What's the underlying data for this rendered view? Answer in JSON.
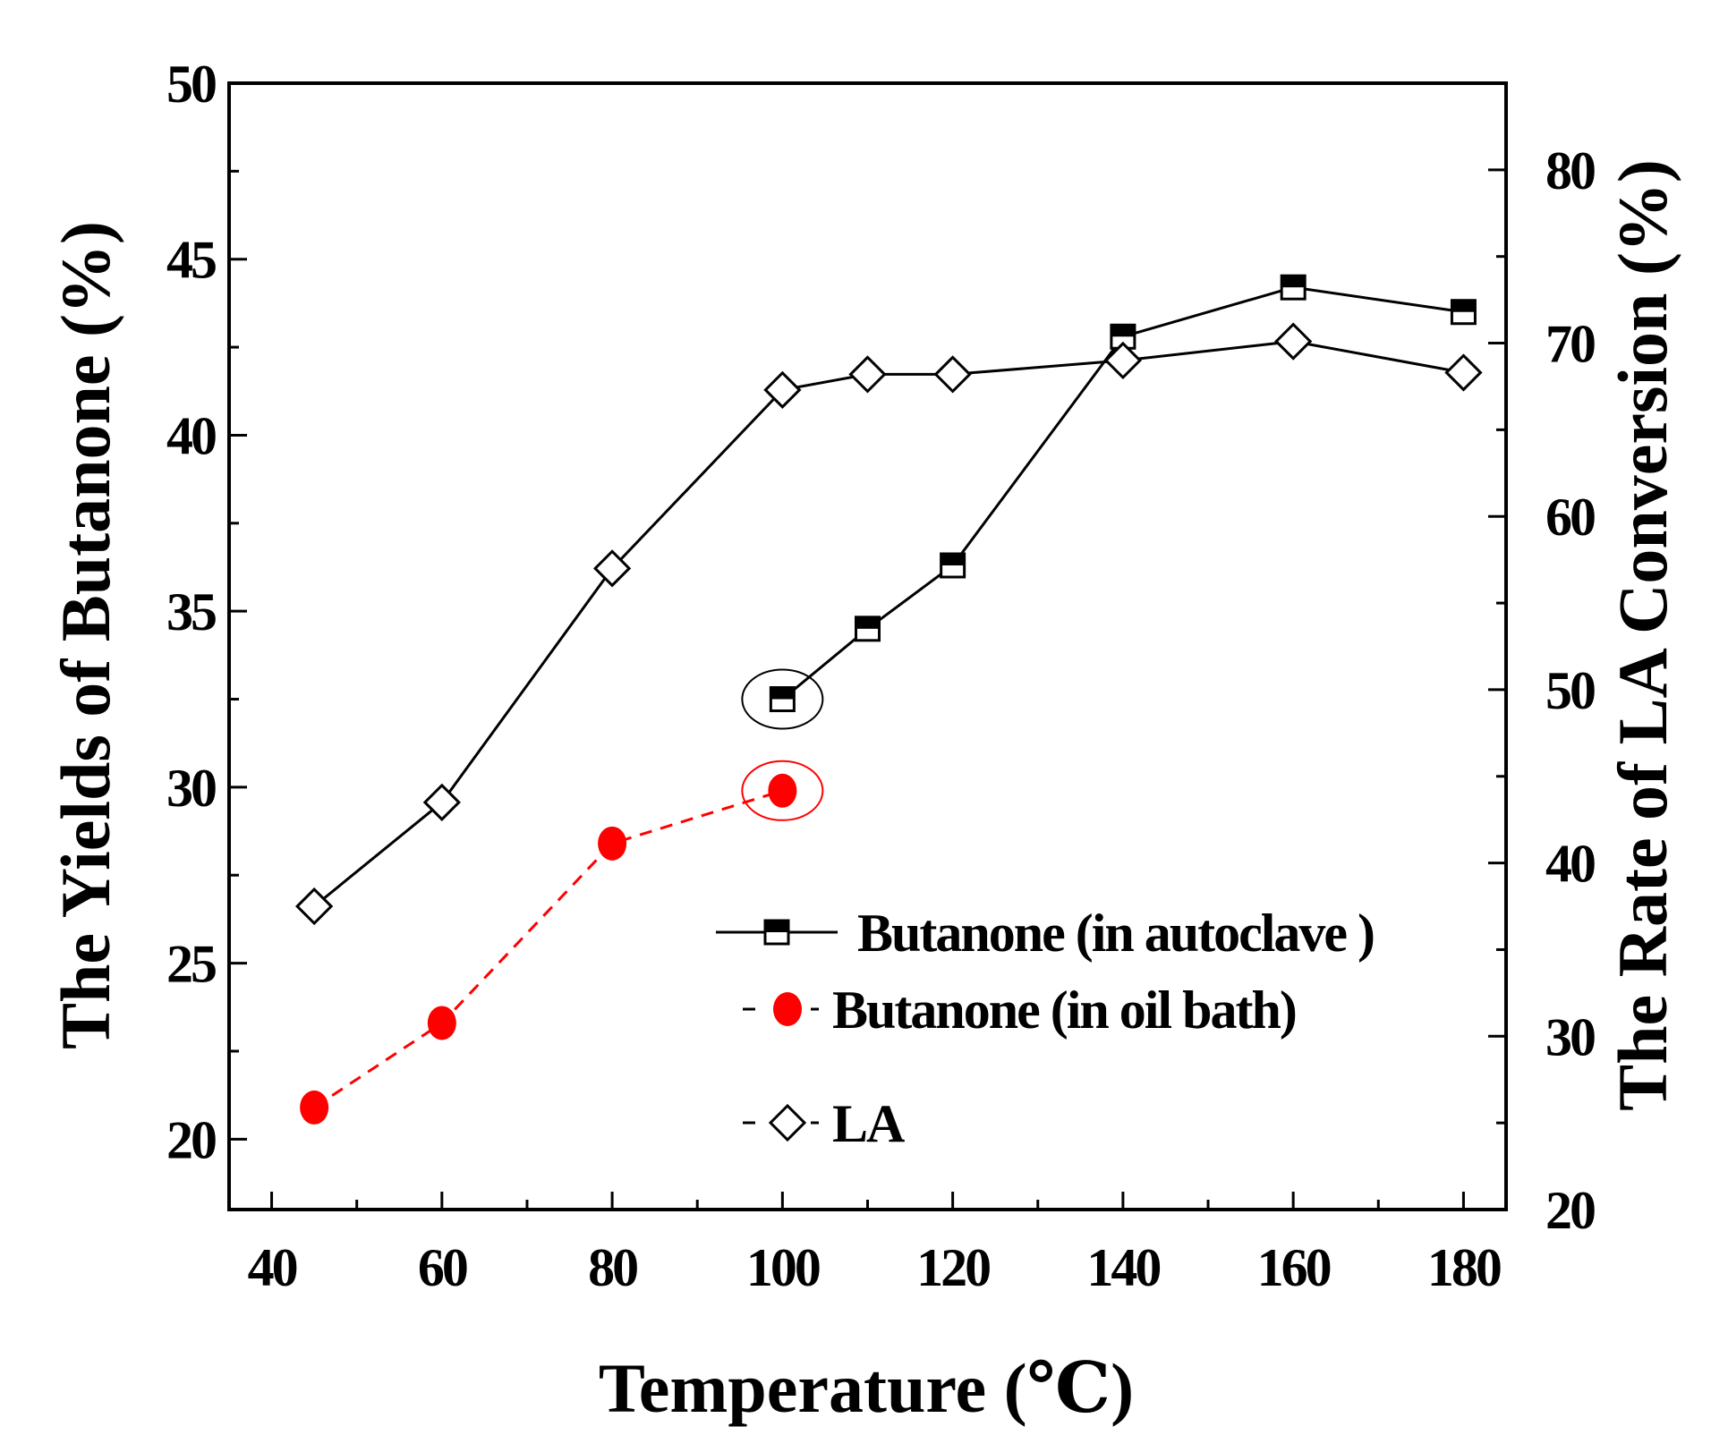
{
  "chart_data": {
    "type": "line",
    "xlabel": "Temperature (℃)",
    "ylabel": "The Yields of Butanone (%)",
    "y2label": "The Rate of LA Conversion (%)",
    "xlim": [
      35,
      185
    ],
    "ylim": [
      18,
      50
    ],
    "y2lim": [
      20,
      85
    ],
    "x_ticks": [
      40,
      60,
      80,
      100,
      120,
      140,
      160,
      180
    ],
    "y_ticks": [
      20,
      25,
      30,
      35,
      40,
      45,
      50
    ],
    "y2_ticks": [
      20,
      30,
      40,
      50,
      60,
      70,
      80
    ],
    "grid": false,
    "legend_position": "lower-right",
    "series": [
      {
        "name": "Butanone (in autoclave )",
        "axis": "left",
        "marker": "half-filled-square",
        "line": "solid",
        "color": "#000000",
        "x": [
          100,
          110,
          120,
          140,
          160,
          180
        ],
        "y": [
          32.5,
          34.5,
          36.3,
          42.8,
          44.2,
          43.5
        ]
      },
      {
        "name": "Butanone (in oil bath)",
        "axis": "left",
        "marker": "filled-circle",
        "line": "dashed",
        "color": "#ff0000",
        "x": [
          45,
          60,
          80,
          100
        ],
        "y": [
          20.9,
          23.3,
          28.4,
          29.9
        ]
      },
      {
        "name": "LA",
        "axis": "right",
        "marker": "open-diamond",
        "line": "solid",
        "color": "#000000",
        "x": [
          45,
          60,
          80,
          100,
          110,
          120,
          140,
          160,
          180
        ],
        "y": [
          37.5,
          43.5,
          57,
          67.3,
          68.2,
          68.2,
          69,
          70.1,
          68.3
        ]
      }
    ],
    "annotations": [
      {
        "type": "ellipse",
        "x": 100,
        "y": 32.5,
        "axis": "left",
        "color": "#000000"
      },
      {
        "type": "ellipse",
        "x": 100,
        "y": 29.9,
        "axis": "left",
        "color": "#ff0000"
      }
    ]
  }
}
